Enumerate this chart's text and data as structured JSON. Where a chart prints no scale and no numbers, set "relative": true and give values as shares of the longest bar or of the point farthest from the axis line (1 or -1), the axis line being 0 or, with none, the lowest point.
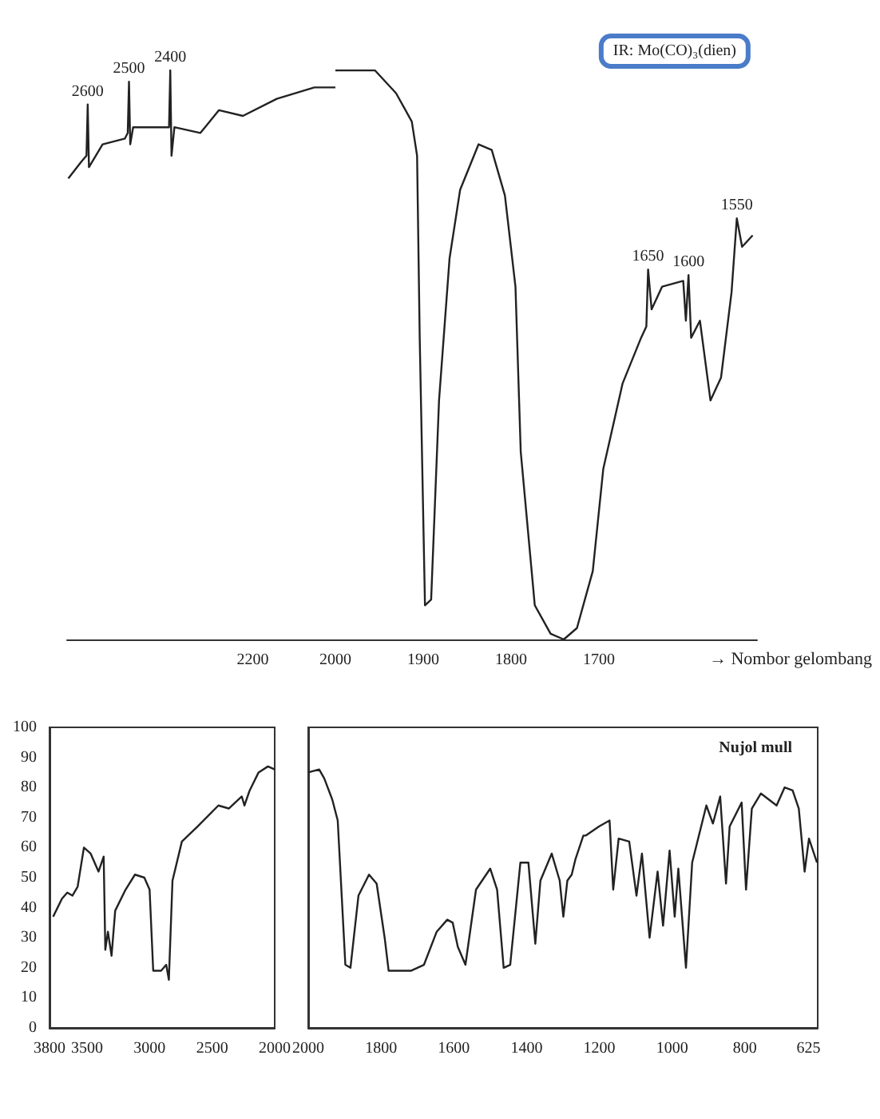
{
  "chart_data": [
    {
      "type": "line",
      "relative": true,
      "color": "#222222",
      "marker": "none",
      "line_style": "solid",
      "xlim": [
        2650,
        2000
      ],
      "xticks": [
        2200,
        2000
      ],
      "x": [
        2647,
        2615,
        2603,
        2600,
        2597,
        2564,
        2510,
        2503,
        2500,
        2497,
        2490,
        2410,
        2403,
        2400,
        2397,
        2390,
        2327,
        2282,
        2224,
        2142,
        2051,
        2000
      ],
      "values": [
        0.81,
        0.84,
        0.85,
        0.94,
        0.83,
        0.87,
        0.88,
        0.89,
        0.98,
        0.87,
        0.9,
        0.9,
        0.9,
        1.0,
        0.85,
        0.9,
        0.89,
        0.93,
        0.92,
        0.95,
        0.97,
        0.97
      ],
      "annotations": [
        {
          "text": "2600",
          "x": 2600,
          "y": 0.94
        },
        {
          "text": "2500",
          "x": 2500,
          "y": 0.98
        },
        {
          "text": "2400",
          "x": 2400,
          "y": 1.0
        }
      ]
    },
    {
      "type": "line",
      "relative": true,
      "color": "#222222",
      "marker": "none",
      "line_style": "solid",
      "title": "IR: Mo(CO)₃(dien)",
      "xlabel": "→ Nombor gelombang",
      "xlim": [
        2000,
        1520
      ],
      "xticks": [
        1900,
        1800,
        1700
      ],
      "x": [
        2000,
        1982,
        1955,
        1931,
        1913,
        1907,
        1904,
        1898,
        1891,
        1882,
        1870,
        1858,
        1837,
        1822,
        1807,
        1795,
        1789,
        1773,
        1755,
        1740,
        1725,
        1707,
        1695,
        1673,
        1652,
        1646,
        1644,
        1640,
        1628,
        1604,
        1601,
        1598,
        1595,
        1585,
        1573,
        1561,
        1549,
        1543,
        1537,
        1525
      ],
      "values": [
        1,
        1,
        1,
        0.96,
        0.91,
        0.85,
        0.53,
        0.06,
        0.07,
        0.42,
        0.67,
        0.79,
        0.87,
        0.86,
        0.78,
        0.62,
        0.33,
        0.06,
        0.01,
        0,
        0.02,
        0.12,
        0.3,
        0.45,
        0.53,
        0.55,
        0.65,
        0.58,
        0.62,
        0.63,
        0.56,
        0.64,
        0.53,
        0.56,
        0.42,
        0.46,
        0.61,
        0.74,
        0.69,
        0.71
      ],
      "annotations": [
        {
          "text": "1650",
          "x": 1644,
          "y": 0.65
        },
        {
          "text": "1600",
          "x": 1598,
          "y": 0.64
        },
        {
          "text": "1550",
          "x": 1543,
          "y": 0.74
        }
      ]
    },
    {
      "type": "line",
      "color": "#222222",
      "marker": "none",
      "line_style": "solid",
      "xlim": [
        3800,
        2000
      ],
      "xticks": [
        3800,
        3500,
        3000,
        2500,
        2000
      ],
      "ylim": [
        0,
        100
      ],
      "yticks": [
        0,
        10,
        20,
        30,
        40,
        50,
        60,
        70,
        80,
        90,
        100
      ],
      "x": [
        3771,
        3700,
        3658,
        3617,
        3575,
        3525,
        3471,
        3408,
        3367,
        3354,
        3333,
        3304,
        3275,
        3192,
        3117,
        3042,
        3000,
        2971,
        2908,
        2867,
        2846,
        2817,
        2742,
        2617,
        2450,
        2367,
        2263,
        2242,
        2200,
        2129,
        2054,
        2000
      ],
      "values": [
        37,
        43,
        45,
        44,
        47,
        60,
        58,
        52,
        57,
        26,
        32,
        24,
        39,
        46,
        51,
        50,
        46,
        19,
        19,
        21,
        16,
        49,
        62,
        67,
        74,
        73,
        77,
        74,
        79,
        85,
        87,
        86
      ]
    },
    {
      "type": "line",
      "color": "#222222",
      "marker": "none",
      "line_style": "solid",
      "tick_labels": "x",
      "xlim": [
        2000,
        600
      ],
      "xticks": [
        2000,
        1800,
        1600,
        1400,
        1200,
        1000,
        800,
        625
      ],
      "ylim": [
        0,
        100
      ],
      "yticks": [
        0,
        10,
        20,
        30,
        40,
        50,
        60,
        70,
        80,
        90,
        100
      ],
      "x": [
        2000,
        1970,
        1956,
        1934,
        1919,
        1898,
        1884,
        1862,
        1833,
        1812,
        1790,
        1779,
        1718,
        1682,
        1647,
        1618,
        1603,
        1589,
        1568,
        1539,
        1500,
        1481,
        1463,
        1445,
        1417,
        1395,
        1376,
        1362,
        1331,
        1309,
        1299,
        1288,
        1276,
        1266,
        1244,
        1237,
        1201,
        1172,
        1162,
        1147,
        1118,
        1098,
        1083,
        1062,
        1040,
        1025,
        1007,
        993,
        983,
        962,
        945,
        906,
        888,
        868,
        852,
        842,
        809,
        797,
        781,
        756,
        713,
        691,
        669,
        652,
        636,
        624,
        602
      ],
      "values": [
        85,
        86,
        83,
        76,
        69,
        21,
        20,
        44,
        51,
        48,
        30,
        19,
        19,
        21,
        32,
        36,
        35,
        27,
        21,
        46,
        53,
        46,
        20,
        21,
        55,
        55,
        28,
        49,
        58,
        49,
        37,
        49,
        51,
        56,
        64,
        64,
        67,
        69,
        46,
        63,
        62,
        44,
        58,
        30,
        52,
        34,
        59,
        37,
        53,
        20,
        55,
        74,
        68,
        77,
        48,
        67,
        75,
        46,
        73,
        78,
        74,
        80,
        79,
        73,
        52,
        63,
        55
      ],
      "annotations": [
        "Nujol mull"
      ]
    }
  ]
}
